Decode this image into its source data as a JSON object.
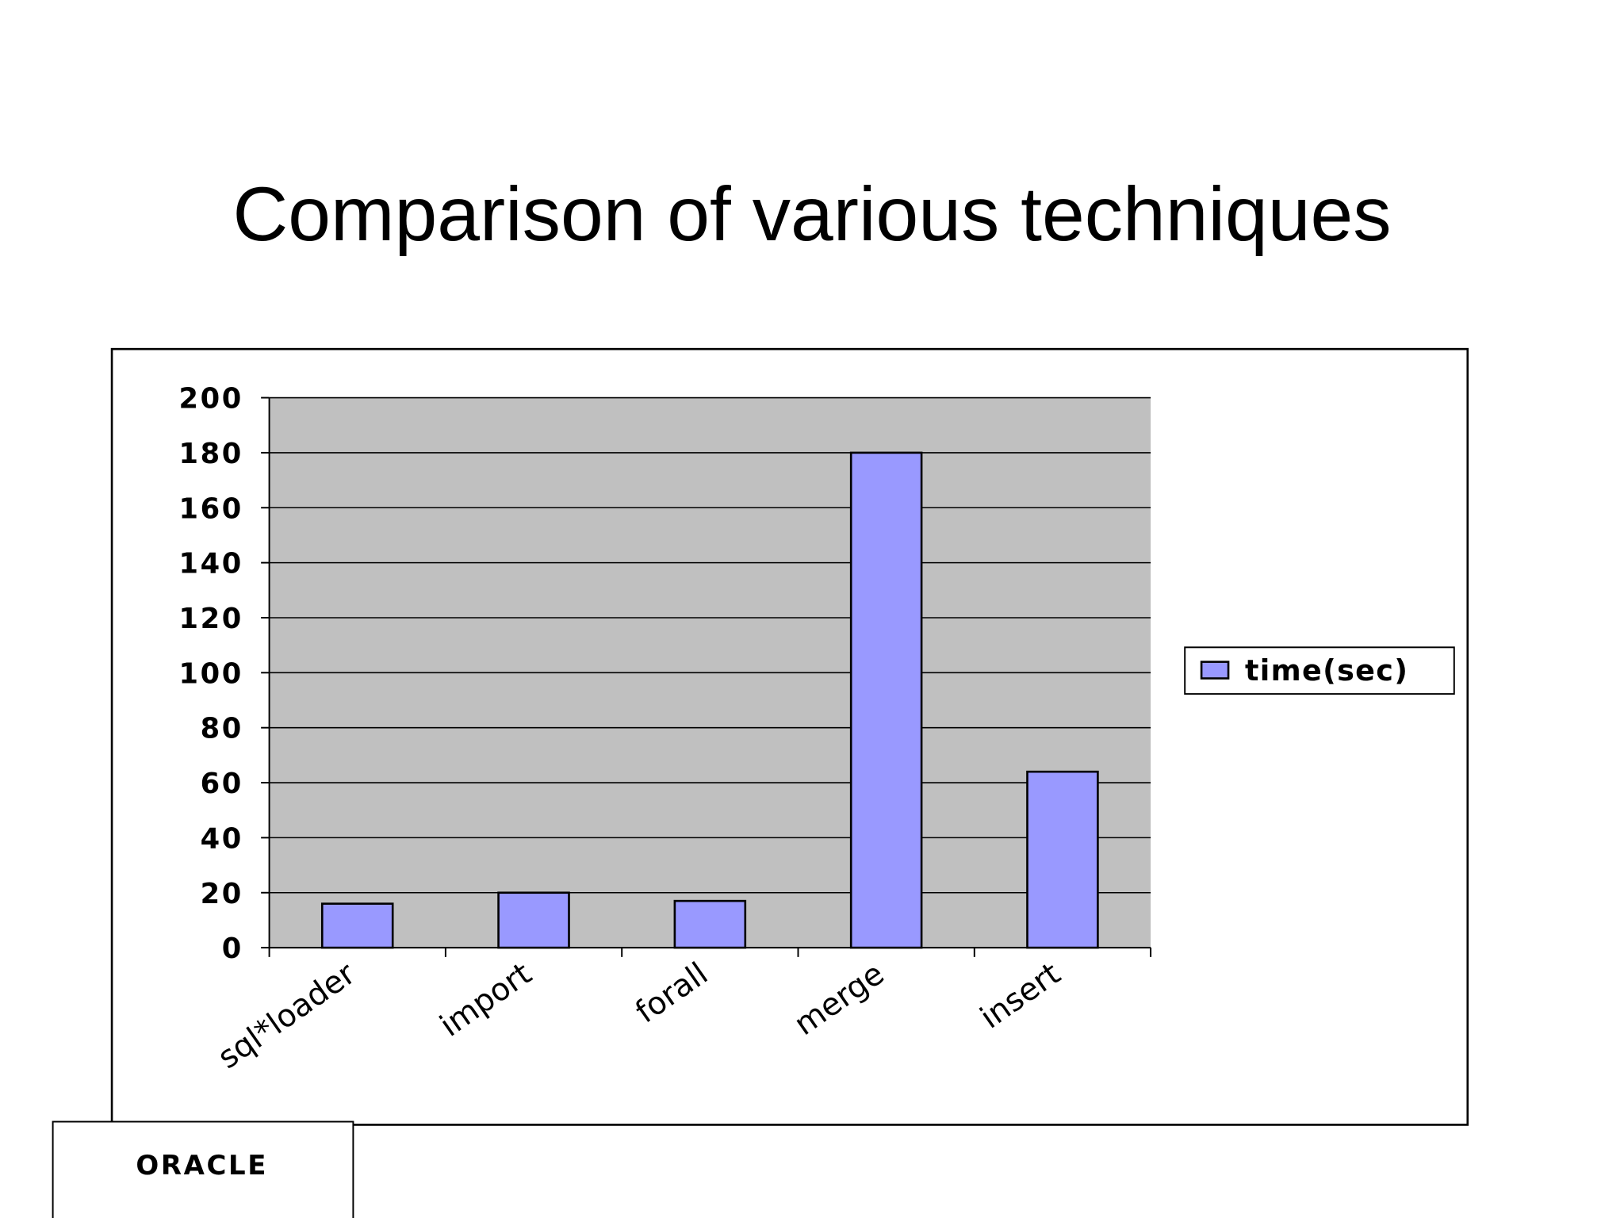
{
  "chart_data": {
    "type": "bar",
    "title": "Comparison of various techniques",
    "categories": [
      "sql*loader",
      "import",
      "forall",
      "merge",
      "insert"
    ],
    "series": [
      {
        "name": "time(sec)",
        "color": "#9999ff",
        "values": [
          16,
          20,
          17,
          180,
          64
        ]
      }
    ],
    "ylim": [
      0,
      200
    ],
    "yticks": [
      0,
      20,
      40,
      60,
      80,
      100,
      120,
      140,
      160,
      180,
      200
    ],
    "grid": true,
    "legend": "right",
    "plot_background": "#c0c0c0"
  },
  "logo": "ORACLE"
}
